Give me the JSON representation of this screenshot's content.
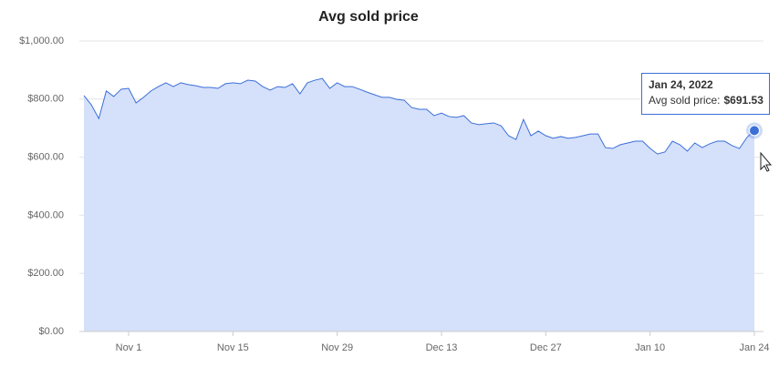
{
  "chart_data": {
    "type": "area",
    "title": "Avg sold price",
    "categories": [
      null,
      null,
      null,
      null,
      null,
      null,
      "Nov 1",
      null,
      null,
      null,
      null,
      null,
      null,
      null,
      null,
      null,
      null,
      null,
      null,
      null,
      "Nov 15",
      null,
      null,
      null,
      null,
      null,
      null,
      null,
      null,
      null,
      null,
      null,
      null,
      null,
      "Nov 29",
      null,
      null,
      null,
      null,
      null,
      null,
      null,
      null,
      null,
      null,
      null,
      null,
      null,
      "Dec 13",
      null,
      null,
      null,
      null,
      null,
      null,
      null,
      null,
      null,
      null,
      null,
      null,
      null,
      "Dec 27",
      null,
      null,
      null,
      null,
      null,
      null,
      null,
      null,
      null,
      null,
      null,
      null,
      null,
      "Jan 10",
      null,
      null,
      null,
      null,
      null,
      null,
      null,
      null,
      null,
      null,
      null,
      null,
      null,
      "Jan 24"
    ],
    "series": [
      {
        "name": "Avg sold price",
        "color": "#3b6fd8",
        "fill": "#d5e0fa",
        "values": [
          812,
          780,
          733,
          828,
          809,
          834,
          837,
          787,
          806,
          828,
          843,
          856,
          843,
          856,
          850,
          846,
          840,
          840,
          837,
          853,
          856,
          853,
          865,
          862,
          843,
          831,
          843,
          840,
          853,
          818,
          856,
          865,
          871,
          837,
          856,
          843,
          843,
          834,
          824,
          815,
          806,
          806,
          799,
          796,
          771,
          765,
          765,
          743,
          752,
          740,
          737,
          743,
          718,
          712,
          715,
          718,
          708,
          674,
          661,
          730,
          674,
          690,
          674,
          665,
          671,
          665,
          668,
          674,
          680,
          680,
          633,
          630,
          643,
          649,
          655,
          655,
          630,
          611,
          618,
          655,
          643,
          621,
          649,
          633,
          646,
          655,
          655,
          640,
          630,
          668,
          691.53
        ]
      }
    ],
    "ylim": [
      0,
      1000
    ],
    "yticks": [
      {
        "value": 0,
        "label": "$0.00"
      },
      {
        "value": 200,
        "label": "$200.00"
      },
      {
        "value": 400,
        "label": "$400.00"
      },
      {
        "value": 600,
        "label": "$600.00"
      },
      {
        "value": 800,
        "label": "$800.00"
      },
      {
        "value": 1000,
        "label": "$1,000.00"
      }
    ],
    "grid": true,
    "tooltip": {
      "title": "Jan 24, 2022",
      "text": "Avg sold price:",
      "value": "$691.53"
    }
  }
}
